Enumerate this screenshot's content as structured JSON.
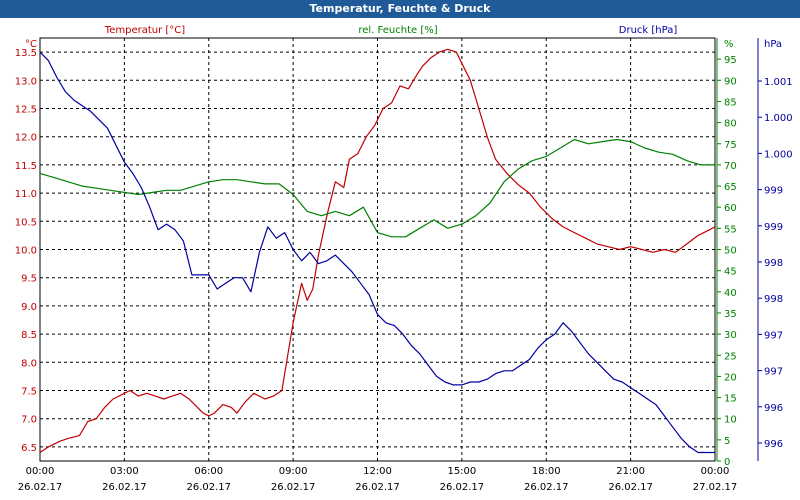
{
  "title": "Temperatur, Feuchte & Druck",
  "chart_data": {
    "type": "line",
    "axes": {
      "temperature": {
        "label": "Temperatur [°C]",
        "unit": "°C",
        "color": "#c00000",
        "ticks": [
          6.5,
          7.0,
          7.5,
          8.0,
          8.5,
          9.0,
          9.5,
          10.0,
          10.5,
          11.0,
          11.5,
          12.0,
          12.5,
          13.0,
          13.5
        ],
        "tick_labels": [
          "6.5",
          "7.0",
          "7.5",
          "8.0",
          "8.5",
          "9.0",
          "9.5",
          "10.0",
          "10.5",
          "11.0",
          "11.5",
          "12.0",
          "12.5",
          "13.0",
          "13.5"
        ]
      },
      "humidity": {
        "label": "rel. Feuchte [%]",
        "unit": "%",
        "color": "#008000",
        "ticks": [
          0,
          5,
          10,
          15,
          20,
          25,
          30,
          35,
          40,
          45,
          50,
          55,
          60,
          65,
          70,
          75,
          80,
          85,
          90,
          95
        ],
        "tick_labels": [
          "0",
          "5",
          "10",
          "15",
          "20",
          "25",
          "30",
          "35",
          "40",
          "45",
          "50",
          "55",
          "60",
          "65",
          "70",
          "75",
          "80",
          "85",
          "90",
          "95"
        ]
      },
      "pressure": {
        "label": "Druck [hPa]",
        "unit": "hPa",
        "color": "#0000a0",
        "tick_labels": [
          "996",
          "996",
          "997",
          "997",
          "998",
          "998",
          "999",
          "999",
          "1.000",
          "1.000",
          "1.001"
        ]
      },
      "x": {
        "tick_labels": [
          {
            "time": "00:00",
            "date": "26.02.17"
          },
          {
            "time": "03:00",
            "date": "26.02.17"
          },
          {
            "time": "06:00",
            "date": "26.02.17"
          },
          {
            "time": "09:00",
            "date": "26.02.17"
          },
          {
            "time": "12:00",
            "date": "26.02.17"
          },
          {
            "time": "15:00",
            "date": "26.02.17"
          },
          {
            "time": "18:00",
            "date": "26.02.17"
          },
          {
            "time": "21:00",
            "date": "26.02.17"
          },
          {
            "time": "00:00",
            "date": "27.02.17"
          }
        ]
      }
    },
    "grid": true,
    "series": [
      {
        "name": "Temperatur [°C]",
        "axis": "temperature",
        "color": "#c00000",
        "x": [
          0,
          0.3,
          0.7,
          1.0,
          1.4,
          1.7,
          2.0,
          2.3,
          2.6,
          3.0,
          3.2,
          3.5,
          3.8,
          4.1,
          4.4,
          4.7,
          5.0,
          5.3,
          5.6,
          5.8,
          6.0,
          6.2,
          6.5,
          6.8,
          7.0,
          7.3,
          7.6,
          8.0,
          8.3,
          8.6,
          9.0,
          9.3,
          9.5,
          9.7,
          9.9,
          10.2,
          10.5,
          10.8,
          11.0,
          11.3,
          11.6,
          11.9,
          12.2,
          12.5,
          12.8,
          13.1,
          13.4,
          13.6,
          13.9,
          14.2,
          14.5,
          14.8,
          15.0,
          15.3,
          15.6,
          15.9,
          16.2,
          16.6,
          17.0,
          17.4,
          17.8,
          18.2,
          18.6,
          19.0,
          19.4,
          19.8,
          20.2,
          20.6,
          21.0,
          21.4,
          21.8,
          22.2,
          22.6,
          23.0,
          23.4,
          23.8,
          24.0
        ],
        "y": [
          6.4,
          6.5,
          6.6,
          6.65,
          6.7,
          6.95,
          7.0,
          7.2,
          7.35,
          7.45,
          7.5,
          7.4,
          7.45,
          7.4,
          7.35,
          7.4,
          7.45,
          7.35,
          7.2,
          7.1,
          7.05,
          7.1,
          7.25,
          7.2,
          7.1,
          7.3,
          7.45,
          7.35,
          7.4,
          7.5,
          8.7,
          9.4,
          9.1,
          9.3,
          9.9,
          10.6,
          11.2,
          11.1,
          11.6,
          11.7,
          12.0,
          12.2,
          12.5,
          12.6,
          12.9,
          12.85,
          13.1,
          13.25,
          13.4,
          13.5,
          13.55,
          13.5,
          13.3,
          13.0,
          12.5,
          12.0,
          11.6,
          11.35,
          11.15,
          11.0,
          10.75,
          10.55,
          10.4,
          10.3,
          10.2,
          10.1,
          10.05,
          10.0,
          10.05,
          10.0,
          9.95,
          10.0,
          9.95,
          10.1,
          10.25,
          10.35,
          10.4
        ]
      },
      {
        "name": "rel. Feuchte [%]",
        "axis": "humidity",
        "color": "#008000",
        "x": [
          0,
          0.5,
          1.0,
          1.5,
          2.0,
          2.5,
          3.0,
          3.5,
          4.0,
          4.5,
          5.0,
          5.5,
          6.0,
          6.5,
          7.0,
          7.5,
          8.0,
          8.5,
          9.0,
          9.5,
          10.0,
          10.5,
          11.0,
          11.5,
          12.0,
          12.5,
          13.0,
          13.5,
          14.0,
          14.5,
          15.0,
          15.5,
          16.0,
          16.5,
          17.0,
          17.5,
          18.0,
          18.5,
          19.0,
          19.5,
          20.0,
          20.5,
          21.0,
          21.5,
          22.0,
          22.5,
          23.0,
          23.5,
          24.0
        ],
        "y": [
          68,
          67,
          66,
          65,
          64.5,
          64,
          63.5,
          63,
          63.5,
          64,
          64,
          65,
          66,
          66.5,
          66.5,
          66,
          65.5,
          65.5,
          63,
          59,
          58,
          59,
          58,
          60,
          54,
          53,
          53,
          55,
          57,
          55,
          56,
          58,
          61,
          66,
          69,
          71,
          72,
          74,
          76,
          75,
          75.5,
          76,
          75.5,
          74,
          73,
          72.5,
          71,
          70,
          70
        ]
      },
      {
        "name": "Druck [hPa]",
        "axis": "pressure",
        "color": "#0000a0",
        "x": [
          0,
          0.3,
          0.6,
          0.9,
          1.2,
          1.5,
          1.8,
          2.1,
          2.4,
          2.7,
          3.0,
          3.3,
          3.6,
          3.9,
          4.2,
          4.5,
          4.8,
          5.1,
          5.4,
          5.7,
          6.0,
          6.3,
          6.6,
          6.9,
          7.2,
          7.5,
          7.8,
          8.1,
          8.4,
          8.7,
          9.0,
          9.3,
          9.6,
          9.9,
          10.2,
          10.5,
          10.8,
          11.1,
          11.4,
          11.7,
          12.0,
          12.3,
          12.6,
          12.9,
          13.2,
          13.5,
          13.8,
          14.1,
          14.4,
          14.7,
          15.0,
          15.3,
          15.6,
          15.9,
          16.2,
          16.5,
          16.8,
          17.1,
          17.4,
          17.7,
          18.0,
          18.3,
          18.6,
          18.9,
          19.2,
          19.5,
          19.8,
          20.1,
          20.4,
          20.7,
          21.0,
          21.3,
          21.6,
          21.9,
          22.2,
          22.5,
          22.8,
          23.1,
          23.4,
          23.7,
          24.0
        ],
        "y": [
          13.5,
          13.35,
          13.05,
          12.8,
          12.65,
          12.55,
          12.45,
          12.3,
          12.15,
          11.85,
          11.55,
          11.35,
          11.1,
          10.75,
          10.35,
          10.45,
          10.35,
          10.15,
          9.55,
          9.55,
          9.55,
          9.3,
          9.4,
          9.5,
          9.5,
          9.25,
          9.95,
          10.4,
          10.2,
          10.3,
          10.0,
          9.8,
          9.95,
          9.75,
          9.8,
          9.9,
          9.75,
          9.6,
          9.4,
          9.2,
          8.85,
          8.7,
          8.65,
          8.5,
          8.3,
          8.15,
          7.95,
          7.75,
          7.65,
          7.6,
          7.6,
          7.65,
          7.65,
          7.7,
          7.8,
          7.85,
          7.85,
          7.95,
          8.05,
          8.25,
          8.4,
          8.5,
          8.7,
          8.55,
          8.35,
          8.15,
          8.0,
          7.85,
          7.7,
          7.65,
          7.55,
          7.45,
          7.35,
          7.25,
          7.05,
          6.85,
          6.65,
          6.5,
          6.4,
          6.4,
          6.4
        ]
      }
    ]
  }
}
